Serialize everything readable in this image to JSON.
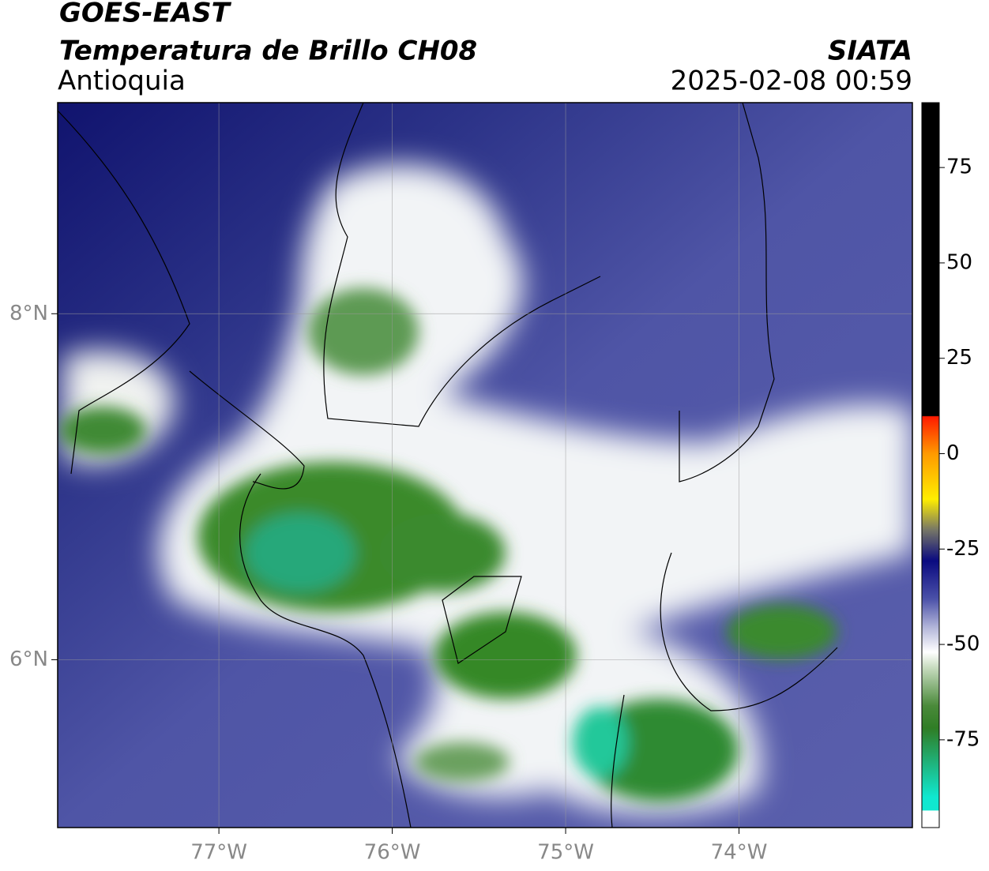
{
  "header": {
    "title": "GOES-EAST",
    "subtitle": "Temperatura de Brillo CH08",
    "region": "Antioquia",
    "source": "SIATA",
    "datetime": "2025-02-08 00:59"
  },
  "map": {
    "xlim": [
      -77.93,
      -73.0
    ],
    "ylim": [
      5.03,
      9.22
    ],
    "xticks": [
      {
        "value": -77,
        "label": "77°W"
      },
      {
        "value": -76,
        "label": "76°W"
      },
      {
        "value": -75,
        "label": "75°W"
      },
      {
        "value": -74,
        "label": "74°W"
      }
    ],
    "yticks": [
      {
        "value": 6,
        "label": "6°N"
      },
      {
        "value": 8,
        "label": "8°N"
      }
    ]
  },
  "colorbar": {
    "lim": [
      -98,
      92
    ],
    "ticks": [
      75,
      50,
      25,
      0,
      -25,
      -50,
      -75
    ]
  }
}
